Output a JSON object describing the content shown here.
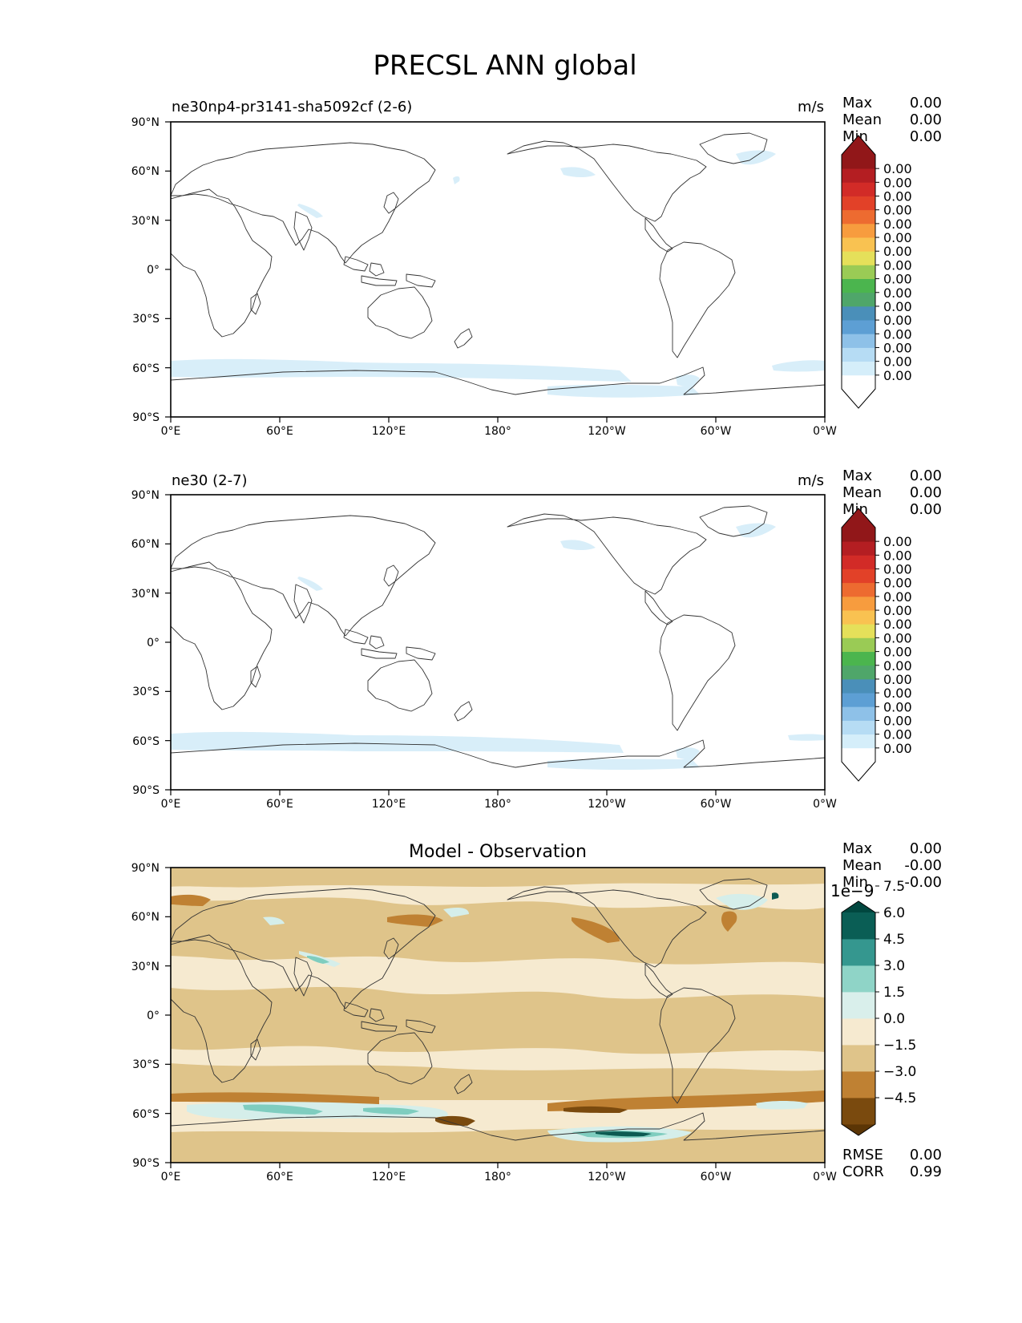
{
  "figure": {
    "title": "PRECSL ANN global"
  },
  "colors": {
    "ocean": "#ffffff",
    "coast": "#333333",
    "precip_light": "#d8eef9",
    "diff_land": "#f6ead0",
    "diff_base": "#dfc48a",
    "diff_mid": "#bf8133",
    "diff_dark": "#7a4a0e",
    "diff_teal_light": "#d5eeea",
    "diff_teal": "#7fcdbf",
    "diff_teal_dark": "#0d5a52"
  },
  "axes": {
    "lat_ticks": [
      "90°N",
      "60°N",
      "30°N",
      "0°",
      "30°S",
      "60°S",
      "90°S"
    ],
    "lon_ticks": [
      "0°E",
      "60°E",
      "120°E",
      "180°",
      "120°W",
      "60°W",
      "0°W"
    ]
  },
  "panels": [
    {
      "id": "test",
      "left_title": "ne30np4-pr3141-sha5092cf (2-6)",
      "right_title": "m/s",
      "stats": [
        {
          "label": "Max",
          "value": "0.00"
        },
        {
          "label": "Mean",
          "value": "0.00"
        },
        {
          "label": "Min",
          "value": "0.00"
        }
      ],
      "colorbar": {
        "exponent": "",
        "ticks": [
          "0.00",
          "0.00",
          "0.00",
          "0.00",
          "0.00",
          "0.00",
          "0.00",
          "0.00",
          "0.00",
          "0.00",
          "0.00",
          "0.00",
          "0.00",
          "0.00",
          "0.00",
          "0.00"
        ],
        "colors": [
          "#ffffff",
          "#d5eefa",
          "#b6dcf4",
          "#8ec1e8",
          "#5d9fd4",
          "#4a8fb9",
          "#4fa66a",
          "#4bb54e",
          "#9acb55",
          "#e5e05a",
          "#f9c251",
          "#f79c3e",
          "#ed6b30",
          "#e24128",
          "#d22b27",
          "#b41e22",
          "#911719"
        ],
        "top_color": "#911719",
        "bottom_color": "#ffffff"
      }
    },
    {
      "id": "ref",
      "left_title": "ne30 (2-7)",
      "right_title": "m/s",
      "stats": [
        {
          "label": "Max",
          "value": "0.00"
        },
        {
          "label": "Mean",
          "value": "0.00"
        },
        {
          "label": "Min",
          "value": "0.00"
        }
      ],
      "colorbar": {
        "exponent": "",
        "ticks": [
          "0.00",
          "0.00",
          "0.00",
          "0.00",
          "0.00",
          "0.00",
          "0.00",
          "0.00",
          "0.00",
          "0.00",
          "0.00",
          "0.00",
          "0.00",
          "0.00",
          "0.00",
          "0.00"
        ],
        "colors": [
          "#ffffff",
          "#d5eefa",
          "#b6dcf4",
          "#8ec1e8",
          "#5d9fd4",
          "#4a8fb9",
          "#4fa66a",
          "#4bb54e",
          "#9acb55",
          "#e5e05a",
          "#f9c251",
          "#f79c3e",
          "#ed6b30",
          "#e24128",
          "#d22b27",
          "#b41e22",
          "#911719"
        ],
        "top_color": "#911719",
        "bottom_color": "#ffffff"
      }
    },
    {
      "id": "diff",
      "center_title": "Model - Observation",
      "stats": [
        {
          "label": "Max",
          "value": "0.00"
        },
        {
          "label": "Mean",
          "value": "-0.00"
        },
        {
          "label": "Min",
          "value": "-0.00"
        }
      ],
      "metrics": [
        {
          "label": "RMSE",
          "value": "0.00"
        },
        {
          "label": "CORR",
          "value": "0.99"
        }
      ],
      "colorbar": {
        "exponent": "1e−9",
        "ticks": [
          "−4.5",
          "−3.0",
          "−1.5",
          "0.0",
          "1.5",
          "3.0",
          "4.5",
          "6.0",
          "7.5"
        ],
        "colors": [
          "#7a4a0e",
          "#bf8133",
          "#dfc48a",
          "#f6ead0",
          "#d9efeb",
          "#8fd4c7",
          "#35978f",
          "#0a5e55"
        ],
        "top_color": "#01473f",
        "bottom_color": "#5b3505"
      }
    }
  ]
}
